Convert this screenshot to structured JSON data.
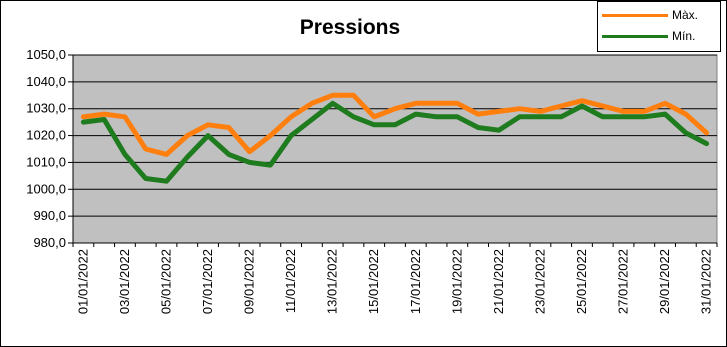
{
  "chart_data": {
    "type": "line",
    "title": "Pressions",
    "ylim": [
      980,
      1050
    ],
    "yticks": [
      "980,0",
      "990,0",
      "1000,0",
      "1010,0",
      "1020,0",
      "1030,0",
      "1040,0",
      "1050,0"
    ],
    "x": [
      "01/01/2022",
      "02/01/2022",
      "03/01/2022",
      "04/01/2022",
      "05/01/2022",
      "06/01/2022",
      "07/01/2022",
      "08/01/2022",
      "09/01/2022",
      "10/01/2022",
      "11/01/2022",
      "12/01/2022",
      "13/01/2022",
      "14/01/2022",
      "15/01/2022",
      "16/01/2022",
      "17/01/2022",
      "18/01/2022",
      "19/01/2022",
      "20/01/2022",
      "21/01/2022",
      "22/01/2022",
      "23/01/2022",
      "24/01/2022",
      "25/01/2022",
      "26/01/2022",
      "27/01/2022",
      "28/01/2022",
      "29/01/2022",
      "30/01/2022",
      "31/01/2022"
    ],
    "xticklabels": [
      "01/01/2022",
      "03/01/2022",
      "05/01/2022",
      "07/01/2022",
      "09/01/2022",
      "11/01/2022",
      "13/01/2022",
      "15/01/2022",
      "17/01/2022",
      "19/01/2022",
      "21/01/2022",
      "23/01/2022",
      "25/01/2022",
      "27/01/2022",
      "29/01/2022",
      "31/01/2022"
    ],
    "series": [
      {
        "name": "Màx.",
        "color": "#ff7f0e",
        "values": [
          1027,
          1028,
          1027,
          1015,
          1013,
          1020,
          1024,
          1023,
          1014,
          1020,
          1027,
          1032,
          1035,
          1035,
          1027,
          1030,
          1032,
          1032,
          1032,
          1028,
          1029,
          1030,
          1029,
          1031,
          1033,
          1031,
          1029,
          1029,
          1032,
          1028,
          1021
        ]
      },
      {
        "name": "Mín.",
        "color": "#1e7b1e",
        "values": [
          1025,
          1026,
          1013,
          1004,
          1003,
          1012,
          1020,
          1013,
          1010,
          1009,
          1020,
          1026,
          1032,
          1027,
          1024,
          1024,
          1028,
          1027,
          1027,
          1023,
          1022,
          1027,
          1027,
          1027,
          1031,
          1027,
          1027,
          1027,
          1028,
          1021,
          1017
        ]
      }
    ],
    "grid": true,
    "legend": "top-right",
    "plot_background": "#c0c0c0"
  }
}
